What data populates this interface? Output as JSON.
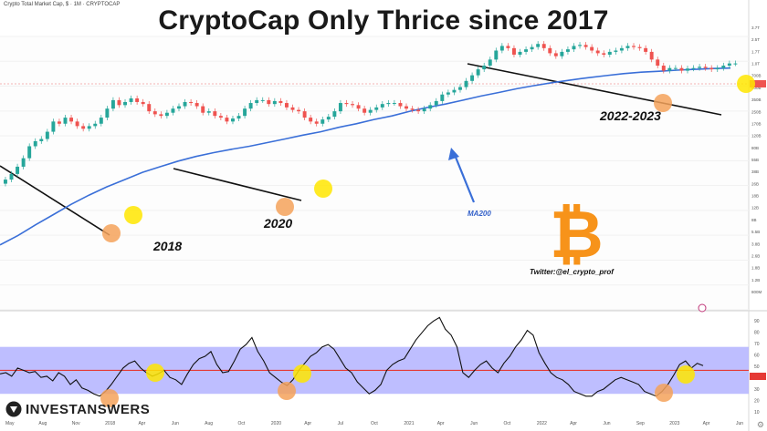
{
  "header": {
    "instrument_label": "Crypto Total Market Cap, $ · 1M · CRYPTOCAP",
    "title": "CryptoCap Only Thrice since 2017"
  },
  "annotations": {
    "year_2018": "2018",
    "year_2020": "2020",
    "year_2022": "2022-2023",
    "ma_label": "MA200",
    "twitter": "Twitter:@el_crypto_prof"
  },
  "branding": {
    "name": "INVESTANSWERS",
    "gear_icon": "gear-icon",
    "bitcoin_icon": "bitcoin-logo-icon"
  },
  "colors": {
    "up_candle": "#26a69a",
    "down_candle": "#ef5350",
    "ma_line": "#3a6fd8",
    "rsi_band": "#b3b3ff",
    "rsi_midline": "#e53935",
    "highlight_yellow": "#ffe600",
    "highlight_orange": "#f5a25a",
    "bitcoin_orange": "#f7931a"
  },
  "chart_data": [
    {
      "type": "candlestick",
      "title": "CryptoCap Only Thrice since 2017",
      "y_scale": "log",
      "ylim": [
        400000000,
        4000000000000
      ],
      "y_ticks": [
        "3.7T",
        "2.5T",
        "1.7T",
        "1.0T",
        "700B",
        "500B",
        "350B",
        "250B",
        "170B",
        "120B",
        "80B",
        "55B",
        "38B",
        "26B",
        "18B",
        "12B",
        "8B",
        "5.5B",
        "3.8B",
        "2.6B",
        "1.8B",
        "1.2B",
        "800M"
      ],
      "x_ticks": [
        "May",
        "Aug",
        "Nov",
        "2018",
        "Apr",
        "Jun",
        "Aug",
        "Oct",
        "2020",
        "Apr",
        "Jul",
        "Oct",
        "2021",
        "Apr",
        "Jun",
        "Oct",
        "2022",
        "Apr",
        "Jun",
        "Sep",
        "2023",
        "Apr",
        "Jun"
      ],
      "series_close_approx_usd_billions": [
        12,
        15,
        20,
        28,
        45,
        55,
        60,
        80,
        120,
        110,
        140,
        120,
        100,
        90,
        100,
        110,
        140,
        200,
        280,
        230,
        260,
        300,
        260,
        240,
        180,
        160,
        150,
        170,
        200,
        220,
        260,
        250,
        220,
        170,
        180,
        150,
        140,
        120,
        135,
        150,
        200,
        250,
        280,
        280,
        240,
        270,
        250,
        210,
        190,
        180,
        140,
        120,
        110,
        130,
        145,
        180,
        250,
        240,
        230,
        200,
        170,
        190,
        210,
        240,
        250,
        250,
        220,
        200,
        190,
        180,
        200,
        230,
        270,
        350,
        380,
        420,
        470,
        600,
        750,
        950,
        1100,
        1400,
        2000,
        2400,
        2200,
        1700,
        1900,
        2100,
        2300,
        2600,
        2200,
        1800,
        1600,
        1900,
        2100,
        2400,
        2500,
        2300,
        2000,
        1800,
        1700,
        1900,
        2000,
        2200,
        2400,
        2300,
        2200,
        1900,
        1400,
        1100,
        900,
        1000,
        1000,
        900,
        980,
        1000,
        1050,
        1000,
        950,
        1000,
        1100,
        1200,
        1200
      ],
      "moving_average": {
        "name": "MA200",
        "values_approx_usd_billions": [
          0.9,
          1.3,
          2,
          3,
          4.5,
          6.5,
          9,
          12,
          16,
          20,
          25,
          30,
          35,
          40,
          45,
          52,
          60,
          70,
          80,
          95,
          110,
          130,
          150,
          180,
          210,
          240,
          280,
          330,
          380,
          440,
          500,
          560,
          620,
          680,
          740,
          800,
          850,
          880,
          920,
          950,
          980,
          1000
        ]
      }
    },
    {
      "type": "line",
      "name": "RSI",
      "ylim": [
        10,
        100
      ],
      "y_ticks": [
        "90",
        "80",
        "70",
        "60",
        "50",
        "40",
        "30",
        "20",
        "10"
      ],
      "band": [
        30,
        70
      ],
      "midline": 50,
      "values": [
        47,
        48,
        45,
        52,
        50,
        48,
        49,
        44,
        45,
        41,
        48,
        45,
        38,
        42,
        35,
        33,
        30,
        28,
        32,
        38,
        45,
        52,
        56,
        58,
        52,
        48,
        45,
        47,
        50,
        44,
        42,
        38,
        47,
        55,
        60,
        62,
        66,
        55,
        48,
        49,
        58,
        68,
        72,
        78,
        66,
        58,
        48,
        44,
        40,
        37,
        42,
        50,
        56,
        62,
        65,
        70,
        72,
        68,
        60,
        52,
        48,
        40,
        35,
        30,
        33,
        38,
        50,
        55,
        58,
        60,
        68,
        76,
        82,
        88,
        92,
        95,
        85,
        80,
        70,
        48,
        44,
        50,
        55,
        58,
        52,
        48,
        56,
        62,
        70,
        76,
        84,
        80,
        65,
        56,
        48,
        44,
        42,
        38,
        32,
        30,
        28,
        28,
        32,
        34,
        38,
        42,
        44,
        42,
        40,
        38,
        32,
        30,
        28,
        32,
        38,
        46,
        55,
        58,
        52,
        56,
        54
      ]
    }
  ]
}
